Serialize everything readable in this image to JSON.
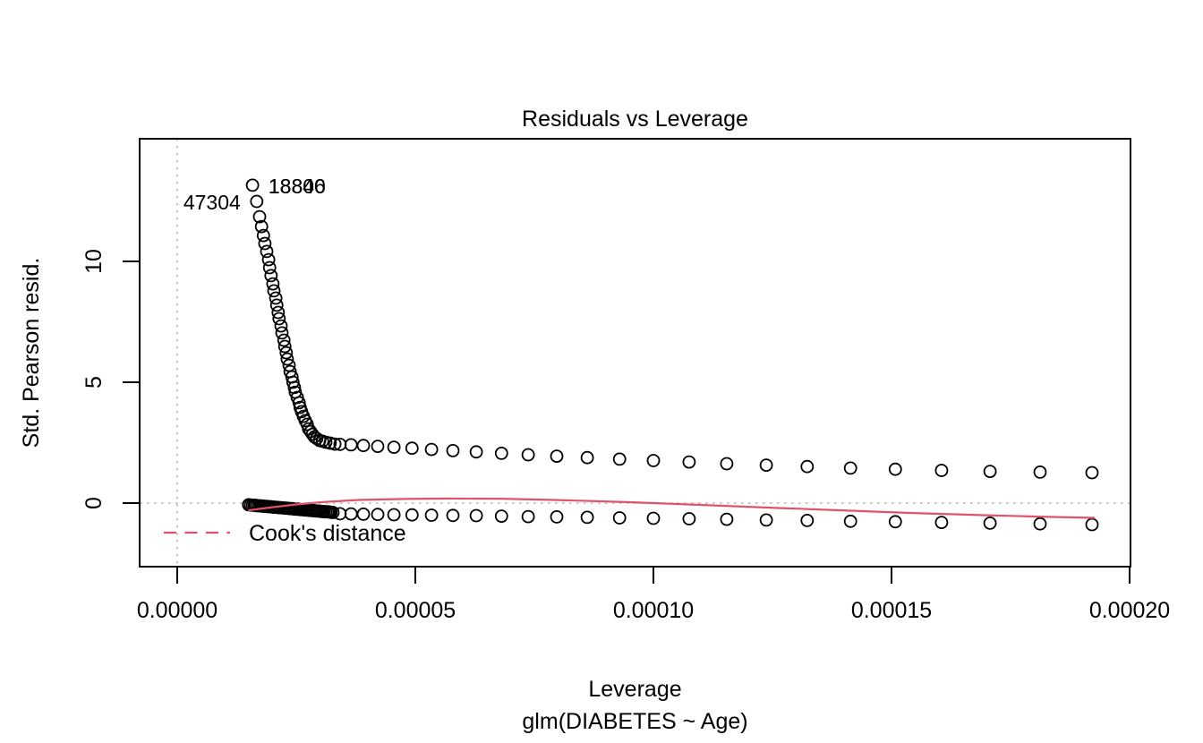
{
  "figure": {
    "kind": "R-base-graphics diagnostic plot",
    "background": "#ffffff"
  },
  "chart_data": {
    "type": "scatter",
    "title": "Residuals vs Leverage",
    "xlabel": "Leverage",
    "xlabel_sub": "glm(DIABETES ~ Age)",
    "ylabel": "Std. Pearson resid.",
    "xlim": [
      -7.9e-06,
      0.0002
    ],
    "ylim": [
      -2.7,
      15.0
    ],
    "grid": false,
    "x_ticks": {
      "values": [
        0.0,
        5e-05,
        0.0001,
        0.00015,
        0.0002
      ],
      "labels": [
        "0.00000",
        "0.00005",
        "0.00010",
        "0.00015",
        "0.00020"
      ]
    },
    "y_ticks": {
      "values": [
        0,
        5,
        10
      ],
      "labels": [
        "0",
        "5",
        "10"
      ]
    },
    "reference_lines": {
      "vertical_x": 0.0,
      "horizontal_y": 0.0,
      "style": "dotted",
      "color": "#bfbfbf"
    },
    "point_style": {
      "marker": "open-circle",
      "radius_px": 6.5,
      "stroke": "#000000",
      "stroke_width": 1.8
    },
    "series": [
      {
        "name": "positive-std-pearson-residuals",
        "marker": "circle",
        "points": [
          [
            1.58e-05,
            13.15
          ],
          [
            1.67e-05,
            12.48
          ],
          [
            1.73e-05,
            11.85
          ],
          [
            1.77e-05,
            11.44
          ],
          [
            1.81e-05,
            11.07
          ],
          [
            1.84e-05,
            10.74
          ],
          [
            1.88e-05,
            10.41
          ],
          [
            1.92e-05,
            10.07
          ],
          [
            1.94e-05,
            9.74
          ],
          [
            1.97e-05,
            9.41
          ],
          [
            2.01e-05,
            9.07
          ],
          [
            2.03e-05,
            8.78
          ],
          [
            2.07e-05,
            8.48
          ],
          [
            2.09e-05,
            8.19
          ],
          [
            2.12e-05,
            7.89
          ],
          [
            2.14e-05,
            7.63
          ],
          [
            2.18e-05,
            7.33
          ],
          [
            2.2e-05,
            7.04
          ],
          [
            2.24e-05,
            6.74
          ],
          [
            2.26e-05,
            6.48
          ],
          [
            2.29e-05,
            6.22
          ],
          [
            2.31e-05,
            5.96
          ],
          [
            2.35e-05,
            5.7
          ],
          [
            2.37e-05,
            5.44
          ],
          [
            2.41e-05,
            5.22
          ],
          [
            2.43e-05,
            5.0
          ],
          [
            2.46e-05,
            4.78
          ],
          [
            2.48e-05,
            4.59
          ],
          [
            2.52e-05,
            4.37
          ],
          [
            2.56e-05,
            4.15
          ],
          [
            2.58e-05,
            3.96
          ],
          [
            2.61e-05,
            3.78
          ],
          [
            2.65e-05,
            3.59
          ],
          [
            2.69e-05,
            3.41
          ],
          [
            2.73e-05,
            3.26
          ],
          [
            2.76e-05,
            3.07
          ],
          [
            2.8e-05,
            2.96
          ],
          [
            2.84e-05,
            2.85
          ],
          [
            2.88e-05,
            2.74
          ],
          [
            2.93e-05,
            2.67
          ],
          [
            2.99e-05,
            2.59
          ],
          [
            3.05e-05,
            2.56
          ],
          [
            3.12e-05,
            2.52
          ],
          [
            3.21e-05,
            2.48
          ],
          [
            3.31e-05,
            2.44
          ],
          [
            3.42e-05,
            2.43
          ],
          [
            3.65e-05,
            2.41
          ],
          [
            3.91e-05,
            2.38
          ],
          [
            4.21e-05,
            2.35
          ],
          [
            4.55e-05,
            2.31
          ],
          [
            4.93e-05,
            2.27
          ],
          [
            5.34e-05,
            2.22
          ],
          [
            5.79e-05,
            2.17
          ],
          [
            6.28e-05,
            2.12
          ],
          [
            6.81e-05,
            2.06
          ],
          [
            7.37e-05,
            2.0
          ],
          [
            7.97e-05,
            1.94
          ],
          [
            8.61e-05,
            1.88
          ],
          [
            9.29e-05,
            1.82
          ],
          [
            0.0001,
            1.76
          ],
          [
            0.0001075,
            1.7
          ],
          [
            0.0001154,
            1.63
          ],
          [
            0.0001237,
            1.57
          ],
          [
            0.0001323,
            1.51
          ],
          [
            0.0001414,
            1.45
          ],
          [
            0.0001508,
            1.4
          ],
          [
            0.0001605,
            1.35
          ],
          [
            0.0001707,
            1.31
          ],
          [
            0.0001812,
            1.28
          ],
          [
            0.0001921,
            1.26
          ]
        ]
      },
      {
        "name": "negative-std-pearson-residuals",
        "marker": "circle",
        "points": [
          [
            1.5e-05,
            -0.07
          ],
          [
            1.54e-05,
            -0.08
          ],
          [
            1.58e-05,
            -0.09
          ],
          [
            1.62e-05,
            -0.09
          ],
          [
            1.65e-05,
            -0.1
          ],
          [
            1.69e-05,
            -0.11
          ],
          [
            1.73e-05,
            -0.11
          ],
          [
            1.77e-05,
            -0.12
          ],
          [
            1.8e-05,
            -0.13
          ],
          [
            1.84e-05,
            -0.13
          ],
          [
            1.88e-05,
            -0.14
          ],
          [
            1.92e-05,
            -0.15
          ],
          [
            1.95e-05,
            -0.15
          ],
          [
            1.99e-05,
            -0.16
          ],
          [
            2.03e-05,
            -0.17
          ],
          [
            2.07e-05,
            -0.17
          ],
          [
            2.11e-05,
            -0.18
          ],
          [
            2.14e-05,
            -0.19
          ],
          [
            2.18e-05,
            -0.19
          ],
          [
            2.22e-05,
            -0.2
          ],
          [
            2.26e-05,
            -0.21
          ],
          [
            2.29e-05,
            -0.21
          ],
          [
            2.33e-05,
            -0.22
          ],
          [
            2.37e-05,
            -0.23
          ],
          [
            2.41e-05,
            -0.23
          ],
          [
            2.44e-05,
            -0.24
          ],
          [
            2.48e-05,
            -0.25
          ],
          [
            2.52e-05,
            -0.25
          ],
          [
            2.56e-05,
            -0.26
          ],
          [
            2.59e-05,
            -0.27
          ],
          [
            2.63e-05,
            -0.27
          ],
          [
            2.67e-05,
            -0.28
          ],
          [
            2.71e-05,
            -0.29
          ],
          [
            2.74e-05,
            -0.29
          ],
          [
            2.78e-05,
            -0.3
          ],
          [
            2.82e-05,
            -0.31
          ],
          [
            2.86e-05,
            -0.31
          ],
          [
            2.9e-05,
            -0.32
          ],
          [
            2.93e-05,
            -0.33
          ],
          [
            2.97e-05,
            -0.33
          ],
          [
            3.01e-05,
            -0.34
          ],
          [
            3.05e-05,
            -0.35
          ],
          [
            3.08e-05,
            -0.35
          ],
          [
            3.12e-05,
            -0.36
          ],
          [
            3.16e-05,
            -0.36
          ],
          [
            3.2e-05,
            -0.37
          ],
          [
            3.23e-05,
            -0.38
          ],
          [
            3.27e-05,
            -0.39
          ],
          [
            3.42e-05,
            -0.44
          ],
          [
            3.65e-05,
            -0.45
          ],
          [
            3.91e-05,
            -0.46
          ],
          [
            4.21e-05,
            -0.47
          ],
          [
            4.55e-05,
            -0.48
          ],
          [
            4.93e-05,
            -0.49
          ],
          [
            5.34e-05,
            -0.5
          ],
          [
            5.79e-05,
            -0.51
          ],
          [
            6.28e-05,
            -0.52
          ],
          [
            6.81e-05,
            -0.54
          ],
          [
            7.37e-05,
            -0.56
          ],
          [
            7.97e-05,
            -0.57
          ],
          [
            8.61e-05,
            -0.59
          ],
          [
            9.29e-05,
            -0.61
          ],
          [
            0.0001,
            -0.63
          ],
          [
            0.0001075,
            -0.65
          ],
          [
            0.0001154,
            -0.67
          ],
          [
            0.0001237,
            -0.7
          ],
          [
            0.0001323,
            -0.72
          ],
          [
            0.0001414,
            -0.75
          ],
          [
            0.0001508,
            -0.77
          ],
          [
            0.0001605,
            -0.8
          ],
          [
            0.0001707,
            -0.83
          ],
          [
            0.0001812,
            -0.86
          ],
          [
            0.0001921,
            -0.89
          ]
        ]
      },
      {
        "name": "smoothed-residual-curve",
        "marker": "line",
        "color": "#DF536B",
        "points": [
          [
            1.49e-05,
            -0.3
          ],
          [
            1.92e-05,
            -0.19
          ],
          [
            2.48e-05,
            -0.06
          ],
          [
            3.05e-05,
            0.04
          ],
          [
            3.8e-05,
            0.13
          ],
          [
            4.74e-05,
            0.17
          ],
          [
            5.68e-05,
            0.19
          ],
          [
            6.81e-05,
            0.18
          ],
          [
            7.93e-05,
            0.13
          ],
          [
            9.44e-05,
            0.04
          ],
          [
            0.0001094,
            -0.07
          ],
          [
            0.0001244,
            -0.19
          ],
          [
            0.0001395,
            -0.3
          ],
          [
            0.0001545,
            -0.41
          ],
          [
            0.0001695,
            -0.5
          ],
          [
            0.0001808,
            -0.56
          ],
          [
            0.0001927,
            -0.61
          ]
        ]
      }
    ],
    "point_labels": [
      {
        "label": "18840",
        "x": 1.84e-05,
        "y": 13.15,
        "anchor": "start"
      },
      {
        "label": "18806",
        "x": 1.84e-05,
        "y": 13.15,
        "anchor": "start"
      },
      {
        "label": "47304",
        "x": 1.5e-05,
        "y": 12.48,
        "anchor": "end"
      }
    ],
    "legend": {
      "position": "bottomleft",
      "entries": [
        {
          "label": "Cook's distance",
          "line_style": "dashed",
          "color": "#DF536B"
        }
      ]
    },
    "colors": {
      "points": "#000000",
      "smooth_line": "#DF536B",
      "reference_dotted": "#bfbfbf",
      "box": "#000000",
      "text": "#000000"
    }
  }
}
